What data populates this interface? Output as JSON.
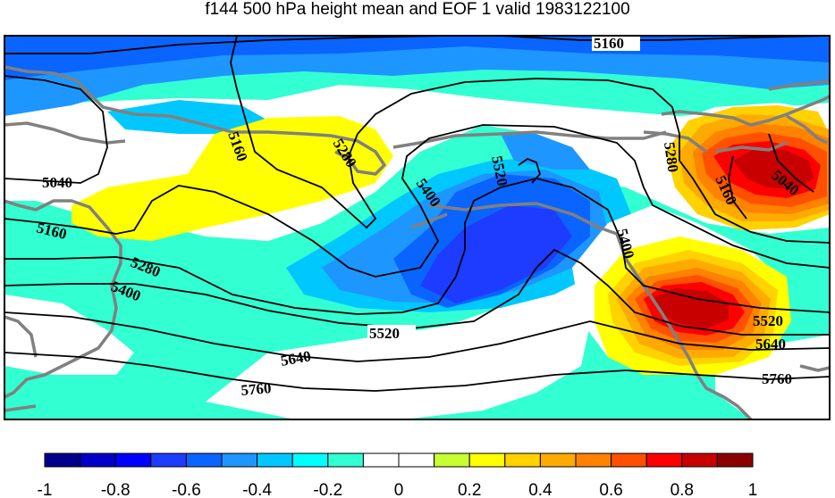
{
  "title": "f144 500 hPa height mean and EOF 1 valid 1983122100",
  "contour_labels": [
    "5160",
    "5160",
    "5280",
    "5520",
    "5400",
    "5280",
    "5160",
    "5040",
    "5040",
    "5160",
    "5280",
    "5400",
    "5400",
    "5520",
    "5520",
    "5640",
    "5640",
    "5760",
    "5760"
  ],
  "colorbar": {
    "ticks": [
      "-1",
      "-0.8",
      "-0.6",
      "-0.4",
      "-0.2",
      "0",
      "0.2",
      "0.4",
      "0.6",
      "0.8",
      "1"
    ],
    "colors": [
      "#00008b",
      "#0000c8",
      "#0000ff",
      "#1e3cff",
      "#0a64ff",
      "#1e96ff",
      "#00c8ff",
      "#00ffff",
      "#32ffd2",
      "#ffffff",
      "#ffffff",
      "#c8ff32",
      "#ffff00",
      "#ffd200",
      "#ffaa00",
      "#ff8200",
      "#ff5000",
      "#ff0000",
      "#c80000",
      "#8b0000"
    ]
  },
  "colors": {
    "coast": "#808080",
    "contour": "#000000",
    "frame": "#000000"
  }
}
